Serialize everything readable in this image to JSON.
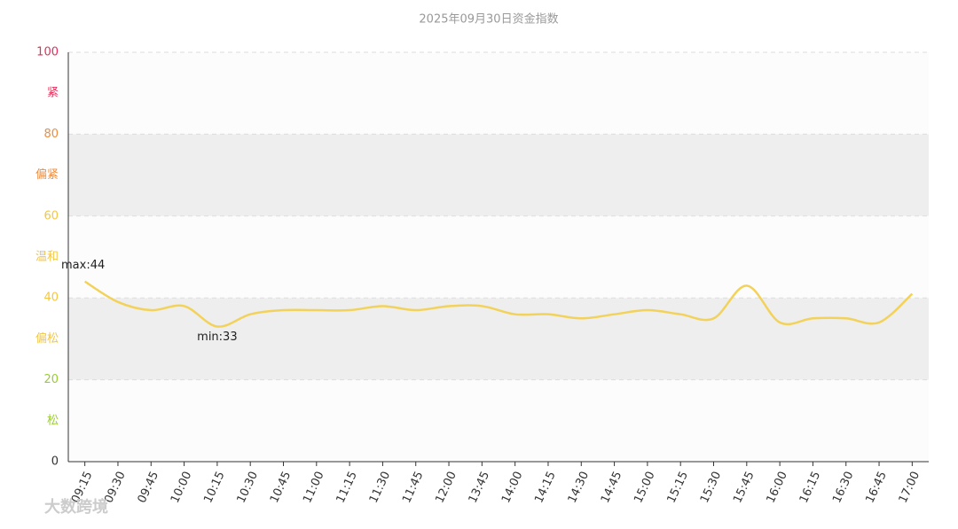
{
  "chart_data": {
    "type": "line",
    "title": "2025年09月30日资金指数",
    "categories": [
      "09:15",
      "09:30",
      "09:45",
      "10:00",
      "10:15",
      "10:30",
      "10:45",
      "11:00",
      "11:15",
      "11:30",
      "11:45",
      "12:00",
      "13:45",
      "14:00",
      "14:15",
      "14:30",
      "14:45",
      "15:00",
      "15:15",
      "15:30",
      "15:45",
      "16:00",
      "16:15",
      "16:30",
      "16:45",
      "17:00"
    ],
    "series": [
      {
        "color": "#f2d25a",
        "values": [
          44,
          39,
          37,
          38,
          33,
          36,
          37,
          37,
          37,
          38,
          37,
          38,
          38,
          36,
          36,
          35,
          36,
          37,
          36,
          35,
          43,
          34,
          35,
          35,
          34,
          41
        ]
      }
    ],
    "ylim": [
      0,
      100
    ],
    "yticks": [
      0,
      20,
      40,
      60,
      80,
      100
    ],
    "ytick_colors": [
      "#333333",
      "#9acd32",
      "#f2c744",
      "#f2c744",
      "#f08c3c",
      "#ee2a5a"
    ],
    "bands": [
      {
        "label": "松",
        "from": 0,
        "to": 20,
        "color": "#9acd32",
        "shaded": false
      },
      {
        "label": "偏松",
        "from": 20,
        "to": 40,
        "color": "#f2c744",
        "shaded": true
      },
      {
        "label": "温和",
        "from": 40,
        "to": 60,
        "color": "#f2c744",
        "shaded": false
      },
      {
        "label": "偏紧",
        "from": 60,
        "to": 80,
        "color": "#f08c3c",
        "shaded": true
      },
      {
        "label": "紧",
        "from": 80,
        "to": 100,
        "color": "#ee2a5a",
        "shaded": false
      }
    ],
    "annotations": [
      {
        "text": "max:44",
        "index": 0
      },
      {
        "text": "min:33",
        "index": 4
      }
    ],
    "watermark": "大数跨境"
  }
}
